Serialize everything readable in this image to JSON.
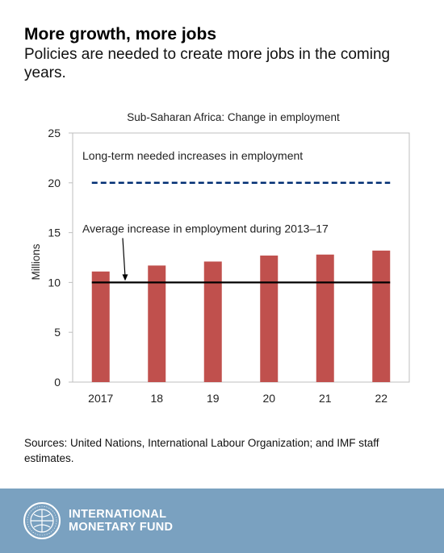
{
  "header": {
    "title": "More growth, more jobs",
    "subtitle": "Policies are needed to create more jobs in the coming years."
  },
  "chart_data": {
    "type": "bar",
    "title": "Sub-Saharan Africa: Change in employment",
    "ylabel": "Millions",
    "xlabel": "",
    "ylim": [
      0,
      25
    ],
    "yticks": [
      0,
      5,
      10,
      15,
      20,
      25
    ],
    "categories": [
      "2017",
      "18",
      "19",
      "20",
      "21",
      "22"
    ],
    "series": [
      {
        "values": [
          11.1,
          11.7,
          12.1,
          12.7,
          12.8,
          13.2
        ],
        "color": "#c0504d"
      }
    ],
    "reference_lines": [
      {
        "label": "Long-term needed increases in employment",
        "value": 20,
        "style": "dashed",
        "color": "#002d72"
      },
      {
        "label": "Average increase in employment during 2013–17",
        "value": 10,
        "style": "solid",
        "color": "#000000"
      }
    ],
    "grid": false,
    "legend": "none"
  },
  "sources": "Sources: United Nations, International Labour Organization; and IMF staff estimates.",
  "footer": {
    "org_line1": "INTERNATIONAL",
    "org_line2": "MONETARY FUND",
    "background": "#7aa1c0"
  }
}
